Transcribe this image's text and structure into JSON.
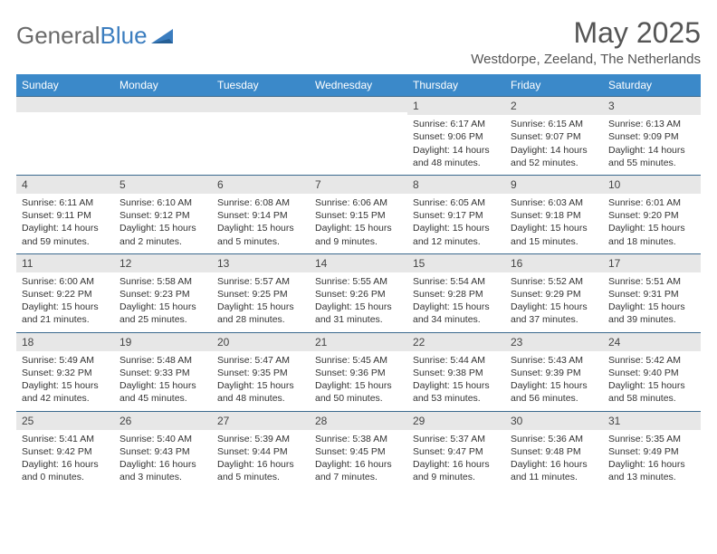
{
  "logo": {
    "text1": "General",
    "text2": "Blue"
  },
  "title": "May 2025",
  "location": "Westdorpe, Zeeland, The Netherlands",
  "colors": {
    "header_bg": "#3b89c9",
    "header_text": "#ffffff",
    "daynum_bg": "#e7e7e7",
    "daynum_border": "#3b6a8f",
    "body_text": "#333333",
    "logo_gray": "#6a6a6a",
    "logo_blue": "#3b7dbf"
  },
  "typography": {
    "title_fontsize": 32,
    "location_fontsize": 15,
    "weekday_fontsize": 12,
    "daynum_fontsize": 12,
    "body_fontsize": 10.5
  },
  "weekdays": [
    "Sunday",
    "Monday",
    "Tuesday",
    "Wednesday",
    "Thursday",
    "Friday",
    "Saturday"
  ],
  "weeks": [
    [
      null,
      null,
      null,
      null,
      {
        "n": "1",
        "sr": "6:17 AM",
        "ss": "9:06 PM",
        "dl": "14 hours and 48 minutes."
      },
      {
        "n": "2",
        "sr": "6:15 AM",
        "ss": "9:07 PM",
        "dl": "14 hours and 52 minutes."
      },
      {
        "n": "3",
        "sr": "6:13 AM",
        "ss": "9:09 PM",
        "dl": "14 hours and 55 minutes."
      }
    ],
    [
      {
        "n": "4",
        "sr": "6:11 AM",
        "ss": "9:11 PM",
        "dl": "14 hours and 59 minutes."
      },
      {
        "n": "5",
        "sr": "6:10 AM",
        "ss": "9:12 PM",
        "dl": "15 hours and 2 minutes."
      },
      {
        "n": "6",
        "sr": "6:08 AM",
        "ss": "9:14 PM",
        "dl": "15 hours and 5 minutes."
      },
      {
        "n": "7",
        "sr": "6:06 AM",
        "ss": "9:15 PM",
        "dl": "15 hours and 9 minutes."
      },
      {
        "n": "8",
        "sr": "6:05 AM",
        "ss": "9:17 PM",
        "dl": "15 hours and 12 minutes."
      },
      {
        "n": "9",
        "sr": "6:03 AM",
        "ss": "9:18 PM",
        "dl": "15 hours and 15 minutes."
      },
      {
        "n": "10",
        "sr": "6:01 AM",
        "ss": "9:20 PM",
        "dl": "15 hours and 18 minutes."
      }
    ],
    [
      {
        "n": "11",
        "sr": "6:00 AM",
        "ss": "9:22 PM",
        "dl": "15 hours and 21 minutes."
      },
      {
        "n": "12",
        "sr": "5:58 AM",
        "ss": "9:23 PM",
        "dl": "15 hours and 25 minutes."
      },
      {
        "n": "13",
        "sr": "5:57 AM",
        "ss": "9:25 PM",
        "dl": "15 hours and 28 minutes."
      },
      {
        "n": "14",
        "sr": "5:55 AM",
        "ss": "9:26 PM",
        "dl": "15 hours and 31 minutes."
      },
      {
        "n": "15",
        "sr": "5:54 AM",
        "ss": "9:28 PM",
        "dl": "15 hours and 34 minutes."
      },
      {
        "n": "16",
        "sr": "5:52 AM",
        "ss": "9:29 PM",
        "dl": "15 hours and 37 minutes."
      },
      {
        "n": "17",
        "sr": "5:51 AM",
        "ss": "9:31 PM",
        "dl": "15 hours and 39 minutes."
      }
    ],
    [
      {
        "n": "18",
        "sr": "5:49 AM",
        "ss": "9:32 PM",
        "dl": "15 hours and 42 minutes."
      },
      {
        "n": "19",
        "sr": "5:48 AM",
        "ss": "9:33 PM",
        "dl": "15 hours and 45 minutes."
      },
      {
        "n": "20",
        "sr": "5:47 AM",
        "ss": "9:35 PM",
        "dl": "15 hours and 48 minutes."
      },
      {
        "n": "21",
        "sr": "5:45 AM",
        "ss": "9:36 PM",
        "dl": "15 hours and 50 minutes."
      },
      {
        "n": "22",
        "sr": "5:44 AM",
        "ss": "9:38 PM",
        "dl": "15 hours and 53 minutes."
      },
      {
        "n": "23",
        "sr": "5:43 AM",
        "ss": "9:39 PM",
        "dl": "15 hours and 56 minutes."
      },
      {
        "n": "24",
        "sr": "5:42 AM",
        "ss": "9:40 PM",
        "dl": "15 hours and 58 minutes."
      }
    ],
    [
      {
        "n": "25",
        "sr": "5:41 AM",
        "ss": "9:42 PM",
        "dl": "16 hours and 0 minutes."
      },
      {
        "n": "26",
        "sr": "5:40 AM",
        "ss": "9:43 PM",
        "dl": "16 hours and 3 minutes."
      },
      {
        "n": "27",
        "sr": "5:39 AM",
        "ss": "9:44 PM",
        "dl": "16 hours and 5 minutes."
      },
      {
        "n": "28",
        "sr": "5:38 AM",
        "ss": "9:45 PM",
        "dl": "16 hours and 7 minutes."
      },
      {
        "n": "29",
        "sr": "5:37 AM",
        "ss": "9:47 PM",
        "dl": "16 hours and 9 minutes."
      },
      {
        "n": "30",
        "sr": "5:36 AM",
        "ss": "9:48 PM",
        "dl": "16 hours and 11 minutes."
      },
      {
        "n": "31",
        "sr": "5:35 AM",
        "ss": "9:49 PM",
        "dl": "16 hours and 13 minutes."
      }
    ]
  ],
  "labels": {
    "sunrise": "Sunrise: ",
    "sunset": "Sunset: ",
    "daylight": "Daylight: "
  }
}
